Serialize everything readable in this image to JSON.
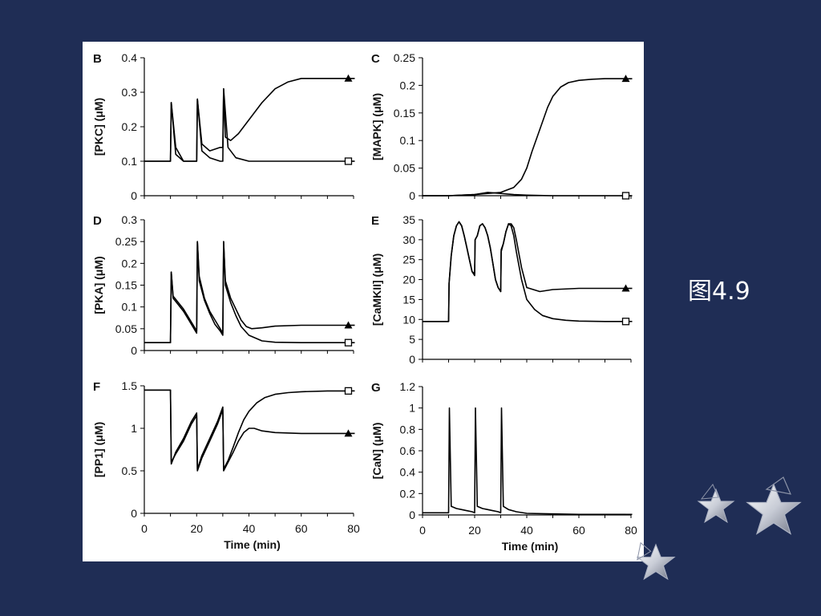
{
  "slide": {
    "caption": "图4.9",
    "background_color": "#1f2d55",
    "decoration": "silver-stars"
  },
  "chart_data": [
    {
      "panel": "B",
      "type": "line",
      "ylabel": "[PKC] (μM)",
      "xlabel": "",
      "xlim": [
        0,
        80
      ],
      "ylim": [
        0,
        0.4
      ],
      "yticks": [
        "0",
        "0.1",
        "0.2",
        "0.3",
        "0.4"
      ],
      "xticks": [],
      "series": [
        {
          "marker": "triangle",
          "x": [
            0,
            10,
            10.3,
            12,
            15,
            19,
            20,
            20.3,
            22,
            25,
            29,
            30,
            30.3,
            31,
            33,
            36,
            40,
            45,
            50,
            55,
            60,
            65,
            70,
            78
          ],
          "y": [
            0.1,
            0.1,
            0.27,
            0.14,
            0.1,
            0.1,
            0.1,
            0.28,
            0.15,
            0.13,
            0.14,
            0.14,
            0.31,
            0.17,
            0.16,
            0.18,
            0.22,
            0.27,
            0.31,
            0.33,
            0.34,
            0.34,
            0.34,
            0.34
          ]
        },
        {
          "marker": "square",
          "x": [
            0,
            10,
            10.3,
            12,
            15,
            19,
            20,
            20.3,
            22,
            25,
            29,
            30,
            30.3,
            32,
            35,
            40,
            50,
            60,
            70,
            78
          ],
          "y": [
            0.1,
            0.1,
            0.27,
            0.12,
            0.1,
            0.1,
            0.1,
            0.28,
            0.13,
            0.11,
            0.1,
            0.1,
            0.31,
            0.14,
            0.11,
            0.1,
            0.1,
            0.1,
            0.1,
            0.1
          ]
        }
      ]
    },
    {
      "panel": "C",
      "type": "line",
      "ylabel": "[MAPK] (μM)",
      "xlabel": "",
      "xlim": [
        0,
        80
      ],
      "ylim": [
        0,
        0.25
      ],
      "yticks": [
        "0",
        "0.05",
        "0.1",
        "0.15",
        "0.2",
        "0.25"
      ],
      "xticks": [],
      "series": [
        {
          "marker": "triangle",
          "x": [
            0,
            10,
            20,
            25,
            30,
            35,
            38,
            40,
            42,
            45,
            48,
            50,
            53,
            56,
            60,
            65,
            70,
            78
          ],
          "y": [
            0,
            0,
            0.002,
            0.004,
            0.006,
            0.015,
            0.03,
            0.05,
            0.08,
            0.12,
            0.16,
            0.18,
            0.197,
            0.205,
            0.209,
            0.211,
            0.212,
            0.212
          ]
        },
        {
          "marker": "square",
          "x": [
            0,
            10,
            20,
            25,
            30,
            35,
            40,
            50,
            60,
            70,
            78
          ],
          "y": [
            0,
            0,
            0.002,
            0.006,
            0.004,
            0.002,
            0.001,
            0,
            0,
            0,
            0
          ]
        }
      ]
    },
    {
      "panel": "D",
      "type": "line",
      "ylabel": "[PKA] (μM)",
      "xlabel": "",
      "xlim": [
        0,
        80
      ],
      "ylim": [
        0,
        0.3
      ],
      "yticks": [
        "0",
        "0.05",
        "0.1",
        "0.15",
        "0.2",
        "0.25",
        "0.3"
      ],
      "xticks": [],
      "series": [
        {
          "marker": "triangle",
          "x": [
            0,
            10,
            10.3,
            11,
            13,
            15,
            17,
            19,
            20,
            20.3,
            21,
            23,
            25,
            27,
            29,
            30,
            30.3,
            31,
            33,
            35,
            37,
            39,
            41,
            45,
            50,
            60,
            70,
            78
          ],
          "y": [
            0.018,
            0.018,
            0.18,
            0.125,
            0.11,
            0.095,
            0.075,
            0.055,
            0.045,
            0.25,
            0.17,
            0.12,
            0.09,
            0.07,
            0.05,
            0.04,
            0.25,
            0.16,
            0.12,
            0.095,
            0.07,
            0.055,
            0.05,
            0.052,
            0.056,
            0.058,
            0.058,
            0.058
          ]
        },
        {
          "marker": "square",
          "x": [
            0,
            10,
            10.3,
            11,
            13,
            15,
            17,
            19,
            20,
            20.3,
            21,
            23,
            25,
            27,
            29,
            30,
            30.3,
            31,
            33,
            35,
            37,
            40,
            45,
            50,
            60,
            70,
            78
          ],
          "y": [
            0.018,
            0.018,
            0.18,
            0.12,
            0.105,
            0.09,
            0.07,
            0.05,
            0.04,
            0.25,
            0.16,
            0.115,
            0.085,
            0.06,
            0.045,
            0.035,
            0.25,
            0.15,
            0.11,
            0.08,
            0.055,
            0.035,
            0.022,
            0.019,
            0.018,
            0.018,
            0.018
          ]
        }
      ]
    },
    {
      "panel": "E",
      "type": "line",
      "ylabel": "[CaMKII] (μM)",
      "xlabel": "",
      "xlim": [
        0,
        80
      ],
      "ylim": [
        0,
        35
      ],
      "yticks": [
        "0",
        "5",
        "10",
        "15",
        "20",
        "25",
        "30",
        "35"
      ],
      "xticks": [],
      "series": [
        {
          "marker": "triangle",
          "x": [
            0,
            10,
            10.2,
            11,
            12,
            13,
            14,
            15,
            16,
            17,
            18,
            19,
            20,
            20.2,
            21,
            22,
            23,
            24,
            25,
            26,
            27,
            28,
            29,
            30,
            30.2,
            31,
            32,
            33,
            34,
            35,
            36,
            38,
            40,
            45,
            50,
            60,
            70,
            78
          ],
          "y": [
            9.5,
            9.5,
            19,
            26,
            31,
            33.5,
            34.5,
            33.5,
            31,
            28,
            25,
            22,
            21.5,
            30,
            31,
            33.5,
            34,
            33,
            31,
            28,
            24,
            20,
            18,
            17,
            27.5,
            29,
            32,
            34,
            34,
            33,
            30,
            23,
            18,
            17,
            17.5,
            17.8,
            17.8,
            17.8
          ]
        },
        {
          "marker": "square",
          "x": [
            0,
            10,
            10.2,
            11,
            12,
            13,
            14,
            15,
            16,
            17,
            18,
            19,
            20,
            20.2,
            21,
            22,
            23,
            24,
            25,
            26,
            27,
            28,
            29,
            30,
            30.2,
            31,
            32,
            33,
            34,
            35,
            36,
            38,
            40,
            43,
            46,
            50,
            55,
            60,
            70,
            78
          ],
          "y": [
            9.5,
            9.5,
            19,
            26,
            31,
            33.5,
            34.5,
            33.5,
            31,
            28,
            25,
            22,
            21,
            30,
            31,
            33.5,
            34,
            33,
            31,
            28,
            24,
            20,
            18,
            17,
            27,
            29,
            32,
            34,
            33.5,
            31,
            27,
            20,
            15,
            12.5,
            11,
            10.2,
            9.8,
            9.6,
            9.5,
            9.5
          ]
        }
      ]
    },
    {
      "panel": "F",
      "type": "line",
      "ylabel": "[PP1] (μM)",
      "xlabel": "Time (min)",
      "xlim": [
        0,
        80
      ],
      "ylim": [
        0,
        1.5
      ],
      "yticks": [
        "0",
        "0.5",
        "1",
        "1.5"
      ],
      "xticks": [
        "0",
        "20",
        "40",
        "60",
        "80"
      ],
      "series": [
        {
          "marker": "triangle",
          "x": [
            0,
            10,
            10.3,
            12,
            15,
            18,
            20,
            20.3,
            22,
            25,
            28,
            30,
            30.3,
            32,
            34,
            36,
            38,
            40,
            42,
            45,
            50,
            60,
            70,
            78
          ],
          "y": [
            1.45,
            1.45,
            0.6,
            0.7,
            0.85,
            1.05,
            1.15,
            0.5,
            0.65,
            0.85,
            1.05,
            1.22,
            0.5,
            0.6,
            0.72,
            0.85,
            0.95,
            1.0,
            1.0,
            0.97,
            0.95,
            0.94,
            0.94,
            0.94
          ]
        },
        {
          "marker": "square",
          "x": [
            0,
            10,
            10.3,
            12,
            15,
            18,
            20,
            20.3,
            22,
            25,
            28,
            30,
            30.3,
            32,
            34,
            36,
            38,
            40,
            43,
            46,
            50,
            55,
            60,
            70,
            78
          ],
          "y": [
            1.45,
            1.45,
            0.58,
            0.72,
            0.88,
            1.08,
            1.18,
            0.52,
            0.68,
            0.88,
            1.08,
            1.25,
            0.52,
            0.62,
            0.78,
            0.95,
            1.1,
            1.2,
            1.3,
            1.36,
            1.4,
            1.42,
            1.43,
            1.44,
            1.44
          ]
        }
      ]
    },
    {
      "panel": "G",
      "type": "line",
      "ylabel": "[CaN] (μM)",
      "xlabel": "Time (min)",
      "xlim": [
        0,
        80
      ],
      "ylim": [
        0,
        1.2
      ],
      "yticks": [
        "0",
        "0.2",
        "0.4",
        "0.6",
        "0.8",
        "1",
        "1.2"
      ],
      "xticks": [
        "0",
        "20",
        "40",
        "60",
        "80"
      ],
      "series": [
        {
          "marker": "none",
          "x": [
            0,
            10,
            10.3,
            11,
            13,
            15,
            17,
            19,
            20,
            20.3,
            21,
            23,
            25,
            27,
            29,
            30,
            30.3,
            31,
            33,
            36,
            40,
            50,
            60,
            70,
            78
          ],
          "y": [
            0.02,
            0.02,
            1.0,
            0.08,
            0.06,
            0.05,
            0.04,
            0.03,
            0.02,
            1.0,
            0.08,
            0.06,
            0.05,
            0.04,
            0.03,
            0.02,
            1.0,
            0.08,
            0.05,
            0.03,
            0.015,
            0.01,
            0.005,
            0.005,
            0.005
          ]
        }
      ]
    }
  ]
}
